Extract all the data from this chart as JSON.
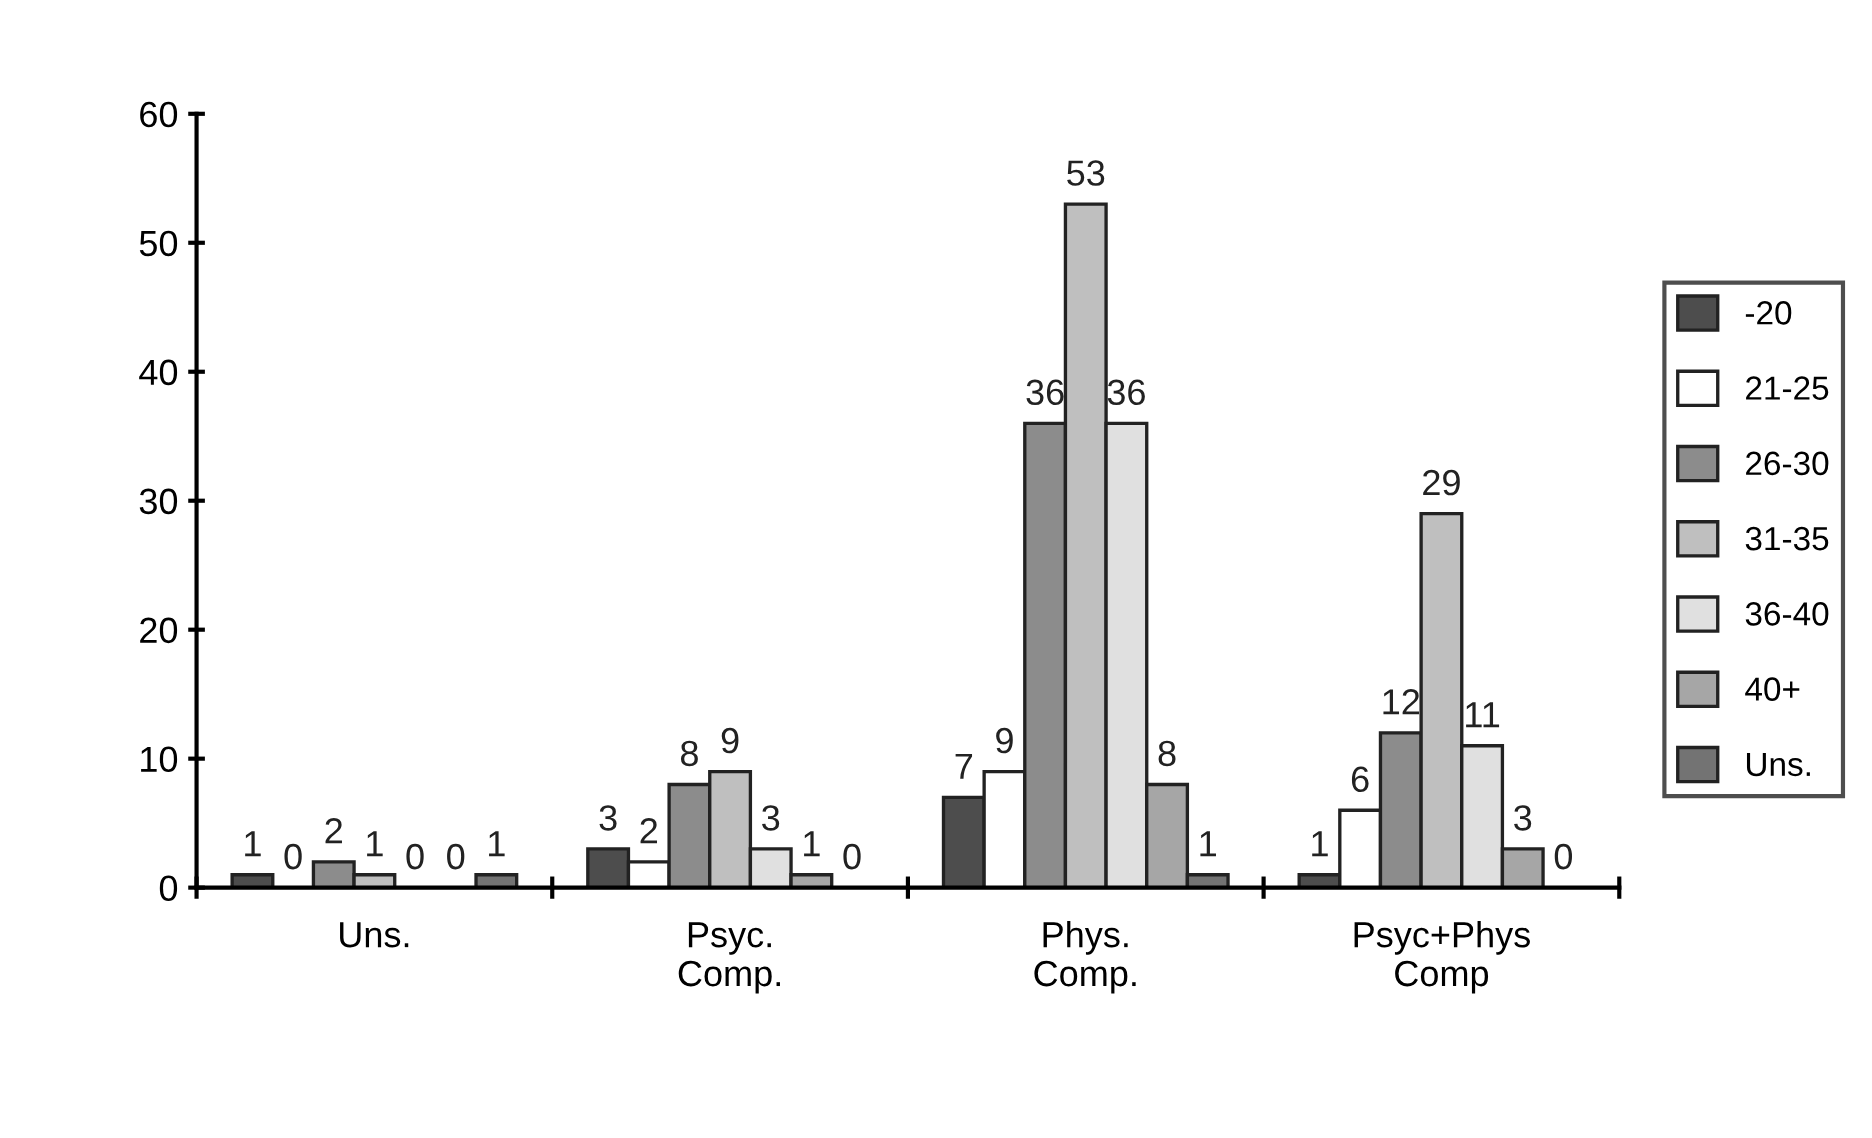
{
  "chart_data": {
    "type": "bar",
    "categories": [
      "Uns.",
      "Psyc.\nComp.",
      "Phys.\nComp.",
      "Psyc+Phys\nComp"
    ],
    "series": [
      {
        "name": "-20",
        "color": "#4d4d4d",
        "values": [
          1,
          3,
          7,
          1
        ]
      },
      {
        "name": "21-25",
        "color": "#ffffff",
        "values": [
          0,
          2,
          9,
          6
        ]
      },
      {
        "name": "26-30",
        "color": "#8c8c8c",
        "values": [
          2,
          8,
          36,
          12
        ]
      },
      {
        "name": "31-35",
        "color": "#bfbfbf",
        "values": [
          1,
          9,
          53,
          29
        ]
      },
      {
        "name": "36-40",
        "color": "#e0e0e0",
        "values": [
          0,
          3,
          36,
          11
        ]
      },
      {
        "name": "40+",
        "color": "#a6a6a6",
        "values": [
          0,
          1,
          8,
          3
        ]
      },
      {
        "name": "Uns.",
        "color": "#737373",
        "values": [
          1,
          0,
          1,
          0
        ]
      }
    ],
    "ylim": [
      0,
      60
    ],
    "yticks": [
      0,
      10,
      20,
      30,
      40,
      50,
      60
    ],
    "data_labels": true,
    "grid": false,
    "legend": "right"
  }
}
